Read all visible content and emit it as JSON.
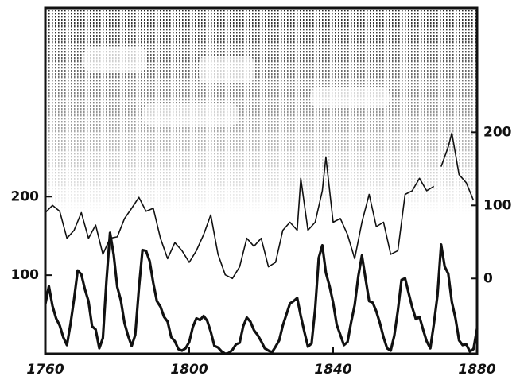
{
  "chart_data": {
    "type": "line",
    "xlim": [
      1760,
      1880
    ],
    "xticks": [
      1760,
      1800,
      1840,
      1880
    ],
    "ylim": [
      0,
      440
    ],
    "yticks": [
      100,
      200
    ],
    "y2lim": [
      -103,
      370
    ],
    "y2ticks": [
      0,
      100,
      200
    ],
    "series": [
      {
        "color": "#111",
        "width": 3.2,
        "x": [
          1760,
          1761,
          1762,
          1763,
          1764,
          1765,
          1766,
          1767,
          1768,
          1769,
          1770,
          1771,
          1772,
          1773,
          1774,
          1775,
          1776,
          1777,
          1778,
          1779,
          1780,
          1781,
          1782,
          1783,
          1784,
          1785,
          1786,
          1787,
          1788,
          1789,
          1790,
          1791,
          1792,
          1793,
          1794,
          1795,
          1796,
          1797,
          1798,
          1799,
          1800,
          1801,
          1802,
          1803,
          1804,
          1805,
          1806,
          1807,
          1808,
          1809,
          1810,
          1811,
          1812,
          1813,
          1814,
          1815,
          1816,
          1817,
          1818,
          1819,
          1820,
          1821,
          1822,
          1823,
          1824,
          1825,
          1826,
          1827,
          1828,
          1829,
          1830,
          1831,
          1832,
          1833,
          1834,
          1835,
          1836,
          1837,
          1838,
          1839,
          1840,
          1841,
          1842,
          1843,
          1844,
          1845,
          1846,
          1847,
          1848,
          1849,
          1850,
          1851,
          1852,
          1853,
          1854,
          1855,
          1856,
          1857,
          1858,
          1859,
          1860,
          1861,
          1862,
          1863,
          1864,
          1865,
          1866,
          1867,
          1868,
          1869,
          1870,
          1871,
          1872,
          1873,
          1874,
          1875,
          1876,
          1877,
          1878,
          1879,
          1880
        ],
        "values": [
          63,
          86,
          61,
          45,
          36,
          21,
          11,
          38,
          70,
          106,
          101,
          82,
          67,
          35,
          31,
          7,
          20,
          93,
          154,
          126,
          85,
          68,
          39,
          23,
          10,
          24,
          83,
          132,
          131,
          118,
          90,
          67,
          60,
          47,
          41,
          21,
          16,
          6,
          4,
          7,
          15,
          34,
          45,
          43,
          48,
          42,
          28,
          10,
          8,
          3,
          0,
          1,
          5,
          12,
          14,
          35,
          46,
          41,
          30,
          24,
          16,
          7,
          4,
          2,
          9,
          17,
          36,
          50,
          64,
          67,
          71,
          48,
          28,
          9,
          13,
          57,
          122,
          138,
          103,
          86,
          65,
          37,
          24,
          11,
          15,
          40,
          62,
          99,
          125,
          96,
          67,
          65,
          54,
          39,
          21,
          7,
          4,
          23,
          55,
          94,
          96,
          77,
          59,
          44,
          47,
          31,
          16,
          7,
          38,
          74,
          139,
          111,
          102,
          66,
          45,
          17,
          11,
          12,
          3,
          6,
          32
        ]
      },
      {
        "color": "#111",
        "width": 1.6,
        "axis": "y2",
        "x": [
          1760,
          1762,
          1764,
          1766,
          1768,
          1770,
          1772,
          1774,
          1776,
          1778,
          1780,
          1782,
          1784,
          1786,
          1788,
          1790,
          1792,
          1794,
          1796,
          1798,
          1800,
          1802,
          1804,
          1806,
          1808,
          1810,
          1812,
          1814,
          1816,
          1818,
          1820,
          1822,
          1824,
          1826,
          1828,
          1830,
          1831,
          1833,
          1835,
          1837,
          1838,
          1840,
          1842,
          1844,
          1846,
          1848,
          1850,
          1852,
          1854,
          1856,
          1858,
          1860,
          1862,
          1864,
          1866,
          1868,
          1869,
          1870,
          1872,
          1873,
          1875,
          1877,
          1879
        ],
        "values": [
          90,
          100,
          92,
          55,
          66,
          90,
          55,
          73,
          33,
          55,
          57,
          82,
          96,
          111,
          92,
          96,
          55,
          27,
          49,
          38,
          22,
          38,
          60,
          87,
          33,
          5,
          0,
          16,
          55,
          44,
          55,
          16,
          22,
          66,
          77,
          66,
          137,
          66,
          77,
          120,
          166,
          77,
          82,
          60,
          27,
          77,
          115,
          71,
          77,
          33,
          38,
          115,
          120,
          137,
          120,
          126,
          null,
          153,
          180,
          199,
          142,
          131,
          107
        ]
      }
    ]
  }
}
